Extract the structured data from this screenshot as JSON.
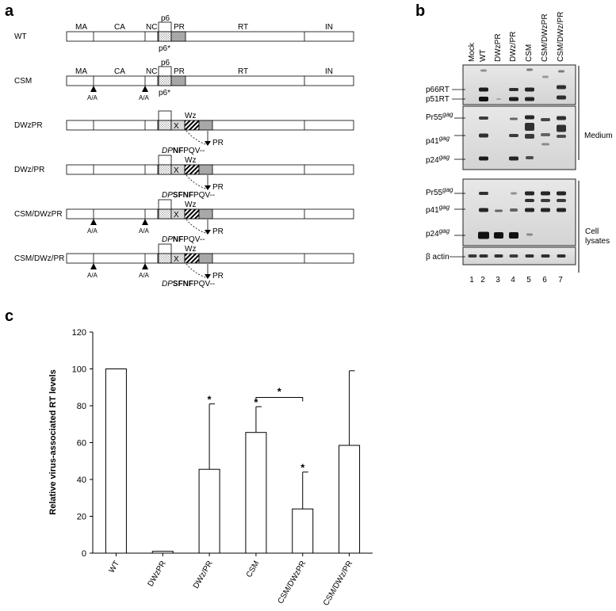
{
  "panels": {
    "a": "a",
    "b": "b",
    "c": "c"
  },
  "panel_a": {
    "constructs": [
      {
        "name": "WT",
        "aa_mutation": false,
        "seg_x": false,
        "pr_seq": null,
        "show_domain_labels": true,
        "show_p6star": true
      },
      {
        "name": "CSM",
        "aa_mutation": true,
        "seg_x": false,
        "pr_seq": null,
        "show_domain_labels": true,
        "show_p6star": true
      },
      {
        "name": "DWzPR",
        "aa_mutation": false,
        "seg_x": true,
        "pr_seq": {
          "italic": "DP",
          "bold": "NF",
          "rest": "PQV--"
        }
      },
      {
        "name": "DWz/PR",
        "aa_mutation": false,
        "seg_x": true,
        "pr_seq": {
          "italic": "DP",
          "bold": "SFNF",
          "rest": "PQV--"
        }
      },
      {
        "name": "CSM/DWzPR",
        "aa_mutation": true,
        "seg_x": true,
        "pr_seq": {
          "italic": "DP",
          "bold": "NF",
          "rest": "PQV--"
        }
      },
      {
        "name": "CSM/DWz/PR",
        "aa_mutation": true,
        "seg_x": true,
        "pr_seq": {
          "italic": "DP",
          "bold": "SFNF",
          "rest": "PQV--"
        }
      }
    ],
    "domains": {
      "ma": "MA",
      "ca": "CA",
      "nc": "NC",
      "p6": "p6",
      "pr": "PR",
      "rt": "RT",
      "in": "IN",
      "p6star": "p6*",
      "x": "X",
      "wz": "Wz"
    },
    "aa_label": "A/A",
    "pr_arrow_label": "PR"
  },
  "panel_b": {
    "lanes": [
      "Mock",
      "WT",
      "DWzPR",
      "DWz/PR",
      "CSM",
      "CSM/DWzPR",
      "CSM/DWz/PR"
    ],
    "lane_numbers": [
      "1",
      "2",
      "3",
      "4",
      "5",
      "6",
      "7"
    ],
    "rt_labels": [
      "p66RT",
      "p51RT"
    ],
    "gag_labels": [
      {
        "base": "Pr55",
        "sup": "gag"
      },
      {
        "base": "p41",
        "sup": "gag"
      },
      {
        "base": "p24",
        "sup": "gag"
      }
    ],
    "medium_label": "Medium",
    "lysate_label_1": "Cell",
    "lysate_label_2": "lysates",
    "actin_label": "β actin"
  },
  "chart_data": {
    "type": "bar",
    "categories": [
      "WT",
      "DWzPR",
      "DWz/PR",
      "CSM",
      "CSM/DWzPR",
      "CSM/DWz/PR"
    ],
    "values": [
      100,
      1,
      45.5,
      65.5,
      24,
      58.5
    ],
    "error_upper": [
      0,
      0,
      81,
      79.5,
      44,
      99
    ],
    "significance": [
      "",
      "",
      "*",
      "*",
      "*",
      ""
    ],
    "bracket": {
      "from": "CSM",
      "to": "CSM/DWzPR",
      "label": "*"
    },
    "ylabel": "Relative virus-associated RT levels",
    "yticks": [
      "0",
      "20",
      "40",
      "60",
      "80",
      "100",
      "120"
    ],
    "ylim": [
      0,
      120
    ]
  }
}
